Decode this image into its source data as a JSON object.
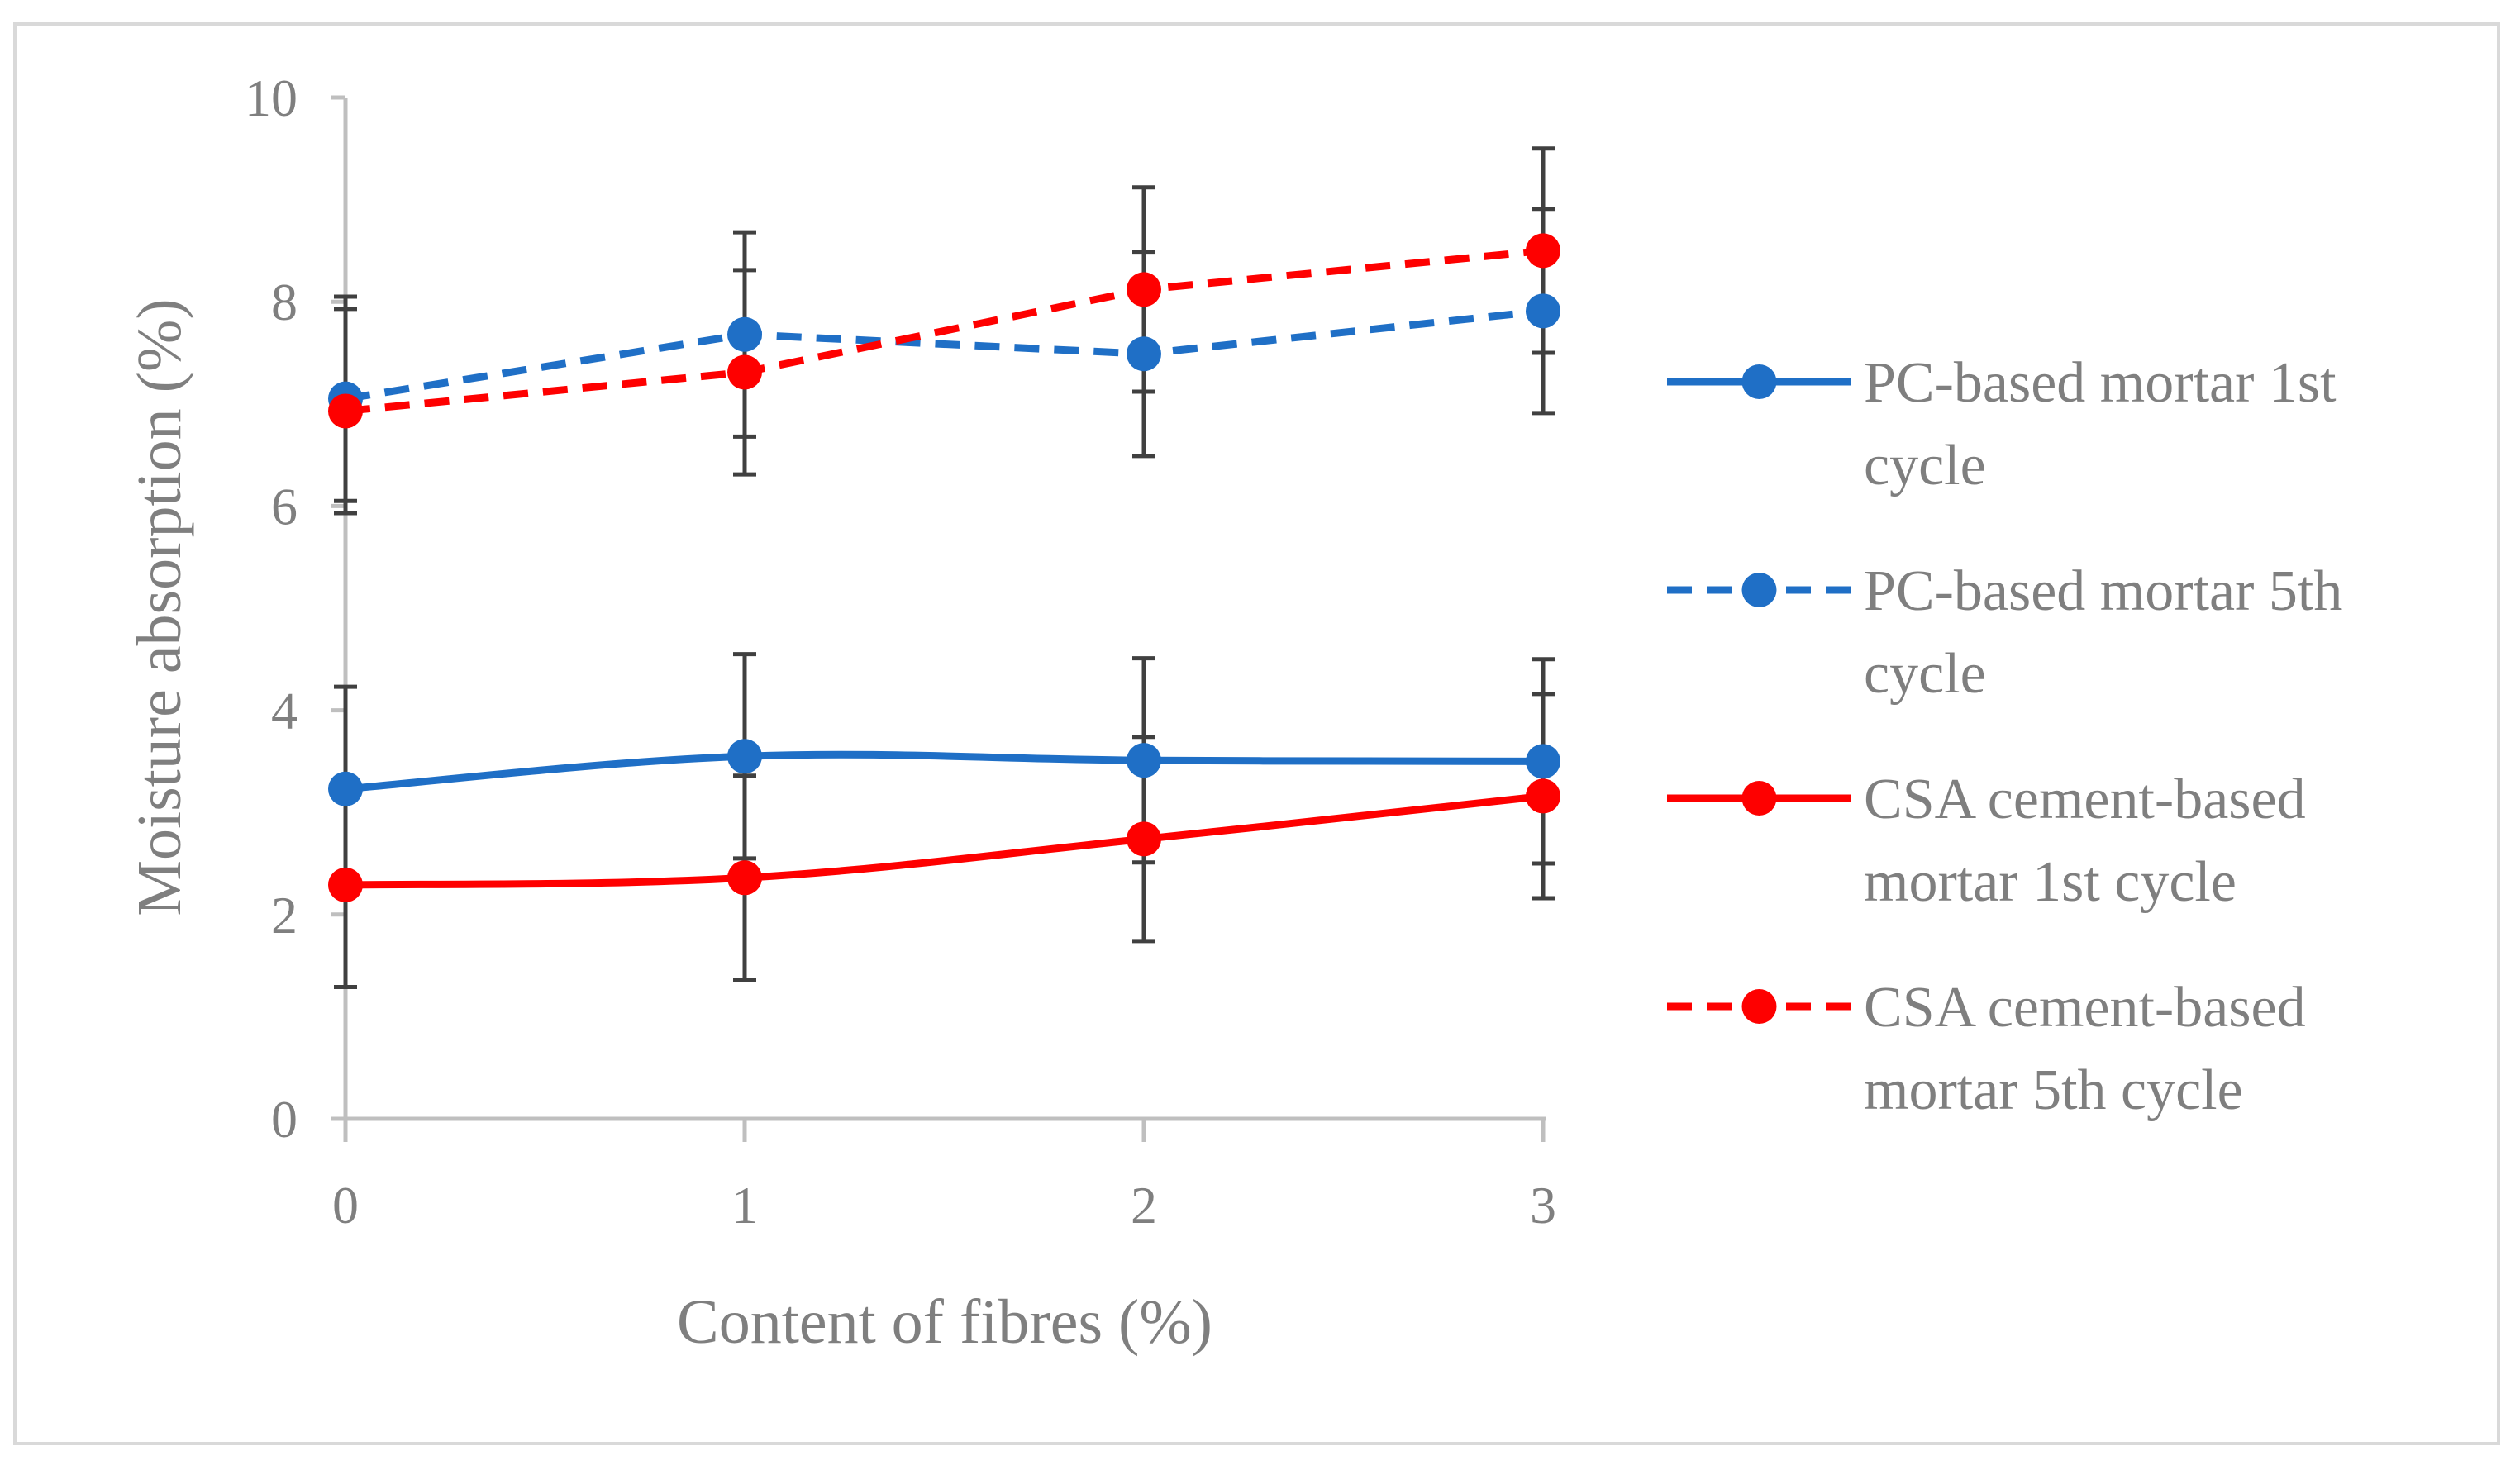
{
  "chart_data": {
    "type": "line",
    "title": "",
    "xlabel": "Content of fibres (%)",
    "ylabel": "Moisture absorption (%)",
    "x": [
      0,
      1,
      2,
      3
    ],
    "x_tick_labels": [
      "0",
      "1",
      "2",
      "3"
    ],
    "ylim": [
      0,
      10
    ],
    "y_ticks": [
      0,
      2,
      4,
      6,
      8,
      10
    ],
    "y_tick_labels": [
      "0",
      "2",
      "4",
      "6",
      "8",
      "10"
    ],
    "grid": false,
    "legend_position": "right",
    "series": [
      {
        "name": "PC-based mortar 1st cycle",
        "legend_lines": [
          "PC-based mortar 1st",
          "cycle"
        ],
        "color": "#1f6fc6",
        "line_style": "solid",
        "values": [
          3.23,
          3.55,
          3.51,
          3.5
        ],
        "error": [
          1.0,
          1.0,
          1.0,
          1.0
        ]
      },
      {
        "name": "PC-based mortar 5th cycle",
        "legend_lines": [
          "PC-based mortar 5th",
          "cycle"
        ],
        "color": "#1f6fc6",
        "line_style": "dashed",
        "values": [
          7.05,
          7.68,
          7.49,
          7.91
        ],
        "error": [
          1.0,
          1.0,
          1.0,
          1.0
        ]
      },
      {
        "name": "CSA cement-based mortar 1st cycle",
        "legend_lines": [
          "CSA cement-based",
          "mortar 1st cycle"
        ],
        "color": "#fe0000",
        "line_style": "solid",
        "values": [
          2.29,
          2.36,
          2.74,
          3.16
        ],
        "error": [
          1.0,
          1.0,
          1.0,
          1.0
        ]
      },
      {
        "name": "CSA cement-based mortar 5th cycle",
        "legend_lines": [
          "CSA cement-based",
          "mortar 5th cycle"
        ],
        "color": "#fe0000",
        "line_style": "dashed",
        "values": [
          6.93,
          7.31,
          8.12,
          8.5
        ],
        "error": [
          1.0,
          1.0,
          1.0,
          1.0
        ]
      }
    ],
    "colors": {
      "axis": "#bfbfbf",
      "error_bar": "#404040",
      "text": "#7f7f7f",
      "frame": "#d9d9d9"
    }
  }
}
